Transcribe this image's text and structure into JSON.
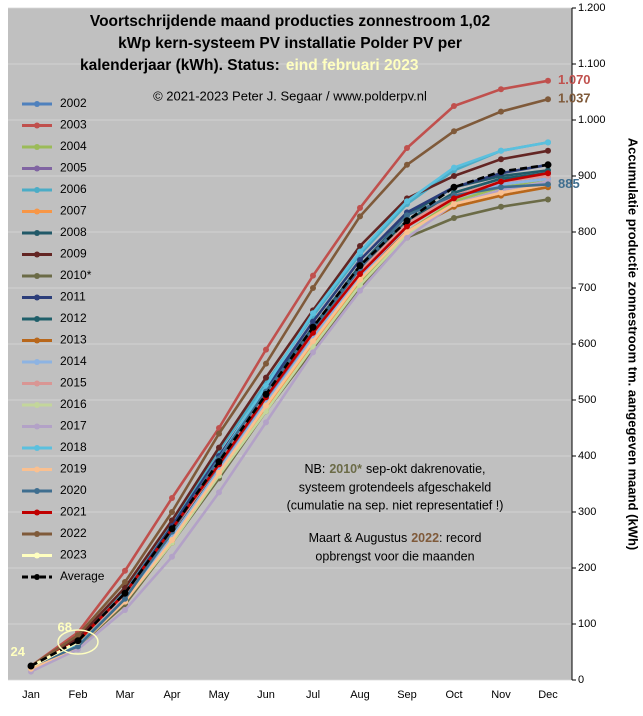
{
  "chart_data": {
    "type": "line",
    "title": [
      "Voortschrijdende maand producties zonnestroom 1,02",
      "kWp kern-systeem PV installatie Polder PV per",
      "kalenderjaar (kWh). Status:"
    ],
    "status": "eind februari 2023",
    "subtitle": "© 2021-2023 Peter J. Segaar / www.polderpv.nl",
    "y_label": "Accumulatie productie zonnestroom tm. aangegeven maand (kWh)",
    "note1": {
      "pre": "NB:",
      "em": "2010*",
      "post": "sep-okt dakrenovatie,"
    },
    "note1_lines": [
      "systeem grotendeels afgeschakeld",
      "(cumulatie na sep. niet representatief !)"
    ],
    "note2": {
      "pre": "Maart & Augustus",
      "em": "2022",
      "post": ": record"
    },
    "note2_lines": [
      "opbrengst voor die maanden"
    ],
    "categories": [
      "Jan",
      "Feb",
      "Mar",
      "Apr",
      "May",
      "Jun",
      "Jul",
      "Aug",
      "Sep",
      "Oct",
      "Nov",
      "Dec"
    ],
    "ylim": [
      0,
      1200
    ],
    "yticks": [
      0,
      100,
      200,
      300,
      400,
      500,
      600,
      700,
      800,
      900,
      {
        "value": 1000,
        "label": "1.000"
      },
      {
        "value": 1100,
        "label": "1.100"
      },
      {
        "value": 1200,
        "label": "1.200"
      }
    ],
    "grid": true,
    "series": [
      {
        "name": "2002",
        "color": "#4f81bd",
        "values": [
          20,
          60,
          140,
          260,
          380,
          500,
          610,
          720,
          810,
          865,
          885,
          895
        ]
      },
      {
        "name": "2003",
        "color": "#c0504d",
        "values": [
          25,
          85,
          195,
          325,
          450,
          590,
          722,
          843,
          950,
          1025,
          1055,
          1070
        ],
        "value_labels": [
          null,
          null,
          null,
          null,
          null,
          null,
          null,
          null,
          null,
          null,
          null,
          "1.070"
        ]
      },
      {
        "name": "2004",
        "color": "#9bbb59",
        "values": [
          20,
          65,
          145,
          250,
          370,
          490,
          600,
          710,
          800,
          855,
          880,
          890
        ]
      },
      {
        "name": "2005",
        "color": "#8064a2",
        "values": [
          25,
          70,
          150,
          265,
          385,
          505,
          620,
          730,
          815,
          870,
          895,
          905
        ]
      },
      {
        "name": "2006",
        "color": "#4bacc6",
        "values": [
          25,
          75,
          160,
          280,
          410,
          530,
          650,
          760,
          850,
          910,
          945,
          960
        ]
      },
      {
        "name": "2007",
        "color": "#f79646",
        "values": [
          20,
          60,
          135,
          245,
          365,
          485,
          600,
          715,
          800,
          850,
          870,
          885
        ]
      },
      {
        "name": "2008",
        "color": "#215968",
        "values": [
          25,
          70,
          155,
          270,
          395,
          515,
          630,
          740,
          830,
          880,
          900,
          910
        ]
      },
      {
        "name": "2009",
        "color": "#632523",
        "values": [
          25,
          75,
          165,
          285,
          415,
          540,
          660,
          775,
          860,
          900,
          930,
          945
        ]
      },
      {
        "name": "2010*",
        "color": "#6b6b47",
        "values": [
          20,
          60,
          135,
          245,
          360,
          480,
          590,
          700,
          790,
          825,
          845,
          858
        ]
      },
      {
        "name": "2011",
        "color": "#2c3e7a",
        "values": [
          25,
          70,
          155,
          275,
          400,
          520,
          640,
          750,
          835,
          880,
          905,
          920
        ]
      },
      {
        "name": "2012",
        "color": "#1f5f6a",
        "values": [
          25,
          65,
          145,
          260,
          385,
          505,
          625,
          735,
          820,
          870,
          895,
          905
        ]
      },
      {
        "name": "2013",
        "color": "#b8671b",
        "values": [
          25,
          65,
          145,
          255,
          375,
          495,
          610,
          720,
          800,
          845,
          865,
          880
        ]
      },
      {
        "name": "2014",
        "color": "#8db3e2",
        "values": [
          22,
          62,
          140,
          255,
          375,
          495,
          610,
          720,
          810,
          860,
          885,
          895
        ]
      },
      {
        "name": "2015",
        "color": "#d99694",
        "values": [
          25,
          70,
          150,
          265,
          385,
          505,
          620,
          730,
          815,
          865,
          890,
          900
        ]
      },
      {
        "name": "2016",
        "color": "#c3d69b",
        "values": [
          20,
          60,
          140,
          245,
          365,
          480,
          595,
          705,
          795,
          850,
          875,
          890
        ]
      },
      {
        "name": "2017",
        "color": "#b3a2c7",
        "values": [
          15,
          55,
          125,
          220,
          335,
          460,
          585,
          695,
          790,
          850,
          875,
          890
        ]
      },
      {
        "name": "2018",
        "color": "#5bc0de",
        "values": [
          22,
          62,
          145,
          265,
          395,
          525,
          655,
          765,
          855,
          915,
          945,
          960
        ]
      },
      {
        "name": "2019",
        "color": "#fac090",
        "values": [
          20,
          60,
          140,
          250,
          370,
          490,
          605,
          715,
          800,
          850,
          870,
          885
        ]
      },
      {
        "name": "2020",
        "color": "#3f6e8f",
        "values": [
          25,
          60,
          145,
          265,
          395,
          515,
          625,
          735,
          830,
          865,
          880,
          885
        ],
        "value_labels": [
          null,
          null,
          null,
          null,
          null,
          null,
          null,
          null,
          null,
          null,
          null,
          "885"
        ]
      },
      {
        "name": "2021",
        "color": "#c00000",
        "values": [
          25,
          70,
          155,
          270,
          385,
          505,
          620,
          725,
          810,
          860,
          890,
          905
        ]
      },
      {
        "name": "2022",
        "color": "#7f5a3a",
        "values": [
          25,
          80,
          175,
          300,
          440,
          565,
          700,
          828,
          920,
          980,
          1015,
          1037
        ],
        "value_labels": [
          null,
          null,
          null,
          null,
          null,
          null,
          null,
          null,
          null,
          null,
          null,
          "1.037"
        ]
      },
      {
        "name": "2023",
        "color": "#ffffc0",
        "values": [
          24,
          68,
          null,
          null,
          null,
          null,
          null,
          null,
          null,
          null,
          null,
          null
        ],
        "value_labels": [
          "24",
          "68",
          null,
          null,
          null,
          null,
          null,
          null,
          null,
          null,
          null,
          null
        ]
      },
      {
        "name": "Average",
        "color": "#000000",
        "dashed": true,
        "values": [
          25,
          70,
          155,
          270,
          390,
          510,
          630,
          740,
          820,
          880,
          908,
          920
        ]
      }
    ]
  }
}
